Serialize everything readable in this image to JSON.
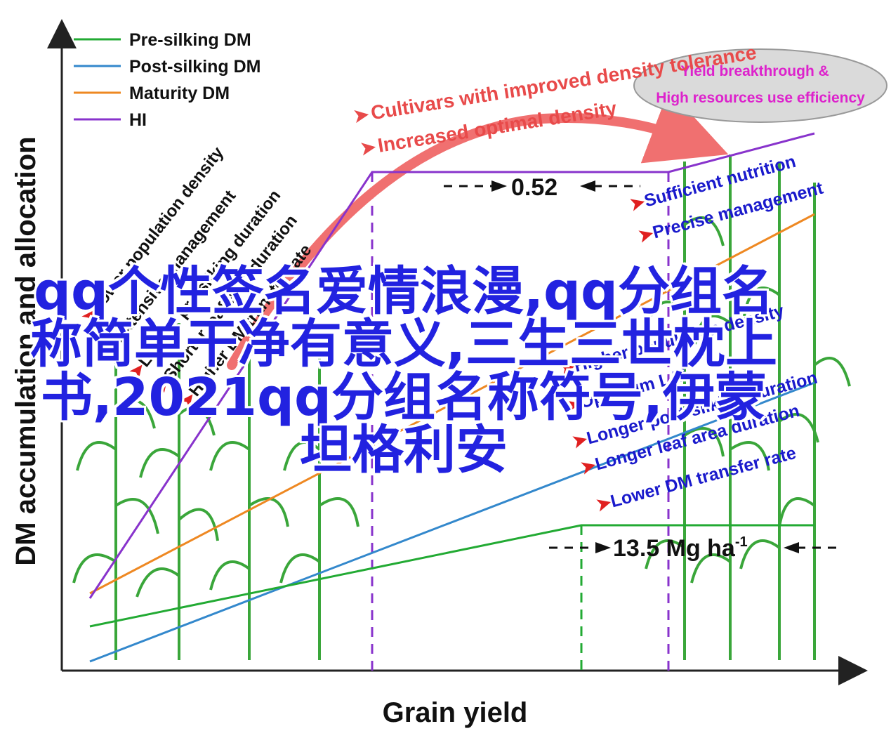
{
  "figure": {
    "ylabel": "DM accumulation and allocation",
    "xlabel": "Grain yield"
  },
  "legend": [
    {
      "label": "Pre-silking DM",
      "color": "#22aa33"
    },
    {
      "label": "Post-silking DM",
      "color": "#3388cc"
    },
    {
      "label": "Maturity DM",
      "color": "#ee8822"
    },
    {
      "label": "HI",
      "color": "#8833cc"
    }
  ],
  "annotations": {
    "top_arrow_1": "Cultivars with improved density tolerance",
    "top_arrow_2": "Increased optimal density",
    "ellipse_line1": "Yield breakthrough &",
    "ellipse_line2": "High resources use efficiency",
    "hi_value": "0.52",
    "yield_value": "13.5 Mg ha",
    "yield_superscript": "-1",
    "left_factors": [
      "Lower population density",
      "Extensive management",
      "Longer pre-silking duration",
      "Shorter leaf area duration",
      "Higher DM transfer rate"
    ],
    "right_factors": [
      "Sufficient nutrition",
      "Precise management",
      "Higher population density",
      "Optimum LAI",
      "Longer post-silking duration",
      "Longer leaf area duration",
      "Lower DM transfer rate"
    ]
  },
  "overlay_text": "qq个性签名爱情浪漫,qq分组名称简单干净有意义,三生三世枕上书,2021qq分组名称符号,伊蒙坦格利安",
  "colors": {
    "pre": "#22aa33",
    "post": "#3388cc",
    "maturity": "#ee8822",
    "hi": "#8833cc",
    "red_text": "#e84a4a",
    "blue_text": "#1a1acc",
    "magenta": "#dd22cc"
  }
}
